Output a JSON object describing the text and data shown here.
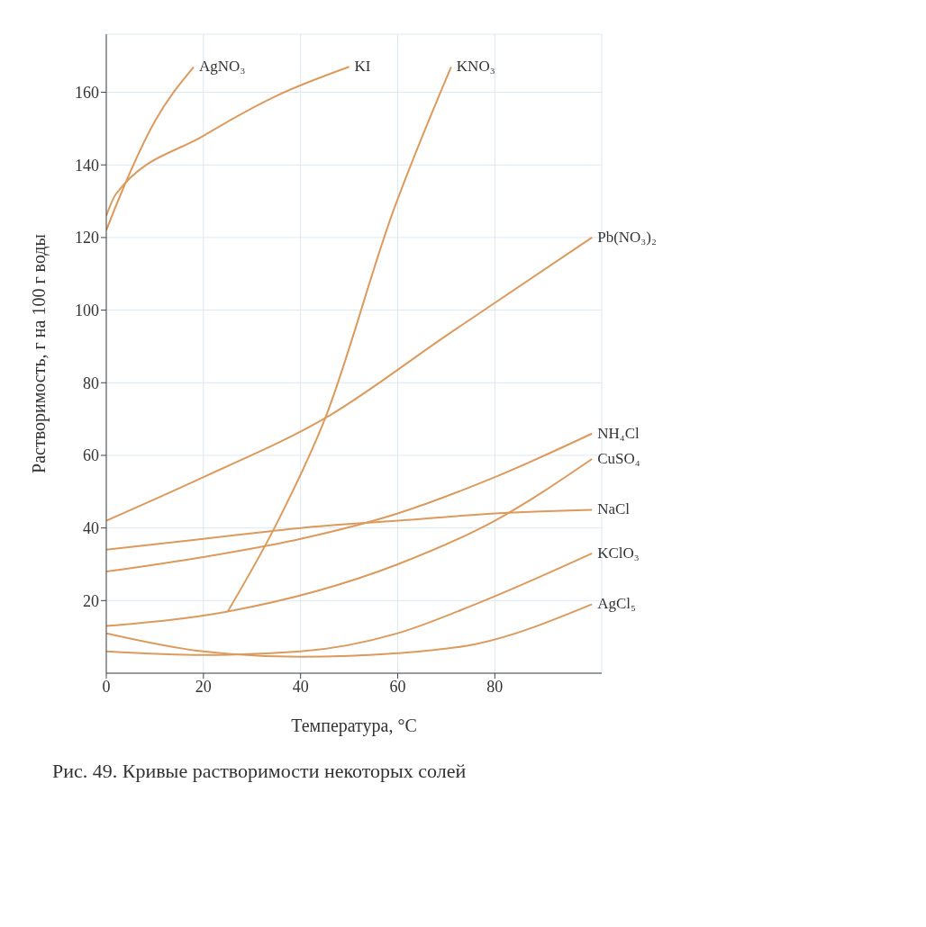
{
  "chart_data": {
    "type": "line",
    "xlabel": "Температура, °C",
    "ylabel": "Растворимость, г на 100 г воды",
    "annotations": [
      "Рис. 49. Кривые растворимости некоторых солей"
    ],
    "xlim": [
      0,
      102
    ],
    "ylim": [
      0,
      176
    ],
    "xticks": [
      0,
      20,
      40,
      60,
      80
    ],
    "yticks": [
      20,
      40,
      60,
      80,
      100,
      120,
      140,
      160
    ],
    "grid": true,
    "marker": "none",
    "series": [
      {
        "name": "AgNO₃",
        "color": "#dc9a5c",
        "x": [
          0,
          3,
          10,
          18
        ],
        "values": [
          122,
          132,
          152,
          167
        ]
      },
      {
        "name": "KI",
        "color": "#dc9a5c",
        "x": [
          0,
          2,
          20,
          35,
          50
        ],
        "values": [
          126,
          132,
          148,
          159,
          167
        ]
      },
      {
        "name": "KNO₃",
        "color": "#dc9a5c",
        "x": [
          25,
          35,
          45,
          59,
          71
        ],
        "values": [
          17,
          41,
          70,
          127,
          167
        ]
      },
      {
        "name": "Pb(NO₃)₂",
        "color": "#dc9a5c",
        "x": [
          0,
          20,
          46,
          70,
          100
        ],
        "values": [
          42,
          54,
          71,
          93,
          120
        ]
      },
      {
        "name": "NaCl",
        "color": "#dc9a5c",
        "x": [
          0,
          20,
          40,
          60,
          80,
          100
        ],
        "values": [
          34,
          37,
          40,
          42,
          44,
          45
        ]
      },
      {
        "name": "NH₄Cl",
        "color": "#dc9a5c",
        "x": [
          0,
          20,
          40,
          60,
          80,
          100
        ],
        "values": [
          28,
          32,
          37,
          44,
          54,
          66
        ]
      },
      {
        "name": "CuSO₄",
        "color": "#dc9a5c",
        "x": [
          0,
          25,
          60,
          80,
          100
        ],
        "values": [
          13,
          17,
          30,
          42,
          59
        ]
      },
      {
        "name": "KClO₃",
        "color": "#dc9a5c",
        "x": [
          0,
          20,
          40,
          60,
          76,
          100
        ],
        "values": [
          6,
          5,
          6,
          11,
          19,
          33
        ]
      },
      {
        "name": "AgCl₅",
        "color": "#dc9a5c",
        "x": [
          0,
          20,
          40,
          60,
          76,
          100
        ],
        "values": [
          11,
          6,
          4.5,
          5.5,
          8,
          19
        ]
      }
    ]
  }
}
